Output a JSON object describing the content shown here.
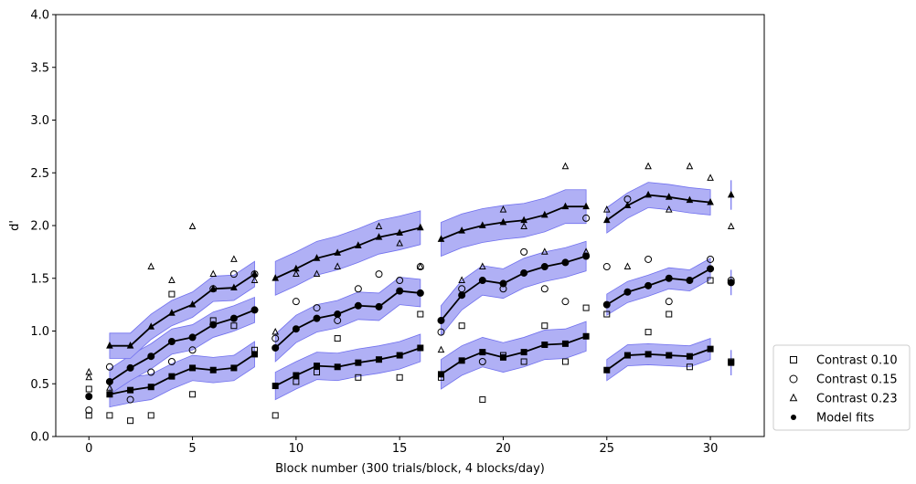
{
  "chart_data": {
    "type": "line",
    "xlabel": "Block number (300 trials/block, 4 blocks/day)",
    "ylabel": "d'",
    "xlim": [
      -1.6,
      32.6
    ],
    "ylim": [
      0.0,
      4.0
    ],
    "x_ticks": [
      0,
      5,
      10,
      15,
      20,
      25,
      30
    ],
    "y_ticks": [
      0.0,
      0.5,
      1.0,
      1.5,
      2.0,
      2.5,
      3.0,
      3.5,
      4.0
    ],
    "legend_position": "right-bottom",
    "band_color": "#b0b0f5",
    "band_edge_color": "#7070ee",
    "legend": [
      {
        "label": "Contrast 0.10",
        "marker": "square"
      },
      {
        "label": "Contrast 0.15",
        "marker": "circle"
      },
      {
        "label": "Contrast 0.23",
        "marker": "triangle"
      },
      {
        "label": "Model fits",
        "marker": "dot"
      }
    ],
    "observed": [
      {
        "name": "Contrast 0.10",
        "marker": "square",
        "points": [
          [
            0,
            0.45
          ],
          [
            0,
            0.2
          ],
          [
            1,
            0.2
          ],
          [
            2,
            0.15
          ],
          [
            3,
            0.2
          ],
          [
            4,
            1.35
          ],
          [
            5,
            0.4
          ],
          [
            6,
            1.1
          ],
          [
            7,
            1.05
          ],
          [
            8,
            0.82
          ],
          [
            9,
            0.2
          ],
          [
            10,
            0.52
          ],
          [
            11,
            0.61
          ],
          [
            12,
            0.93
          ],
          [
            13,
            0.56
          ],
          [
            15,
            0.56
          ],
          [
            16,
            1.16
          ],
          [
            17,
            0.56
          ],
          [
            18,
            1.05
          ],
          [
            19,
            0.35
          ],
          [
            20,
            0.77
          ],
          [
            21,
            0.71
          ],
          [
            22,
            1.05
          ],
          [
            23,
            0.71
          ],
          [
            24,
            1.22
          ],
          [
            25,
            1.16
          ],
          [
            27,
            0.99
          ],
          [
            28,
            1.16
          ],
          [
            29,
            0.66
          ],
          [
            30,
            1.48
          ],
          [
            31,
            0.71
          ]
        ]
      },
      {
        "name": "Contrast 0.15",
        "marker": "circle",
        "points": [
          [
            0,
            0.25
          ],
          [
            1,
            0.66
          ],
          [
            2,
            0.35
          ],
          [
            3,
            0.61
          ],
          [
            4,
            0.71
          ],
          [
            5,
            0.82
          ],
          [
            6,
            1.4
          ],
          [
            7,
            1.54
          ],
          [
            8,
            1.54
          ],
          [
            9,
            0.93
          ],
          [
            10,
            1.28
          ],
          [
            11,
            1.22
          ],
          [
            12,
            1.1
          ],
          [
            13,
            1.4
          ],
          [
            14,
            1.54
          ],
          [
            15,
            1.48
          ],
          [
            16,
            1.61
          ],
          [
            17,
            0.99
          ],
          [
            18,
            1.4
          ],
          [
            19,
            0.71
          ],
          [
            20,
            1.4
          ],
          [
            21,
            1.75
          ],
          [
            22,
            1.4
          ],
          [
            23,
            1.28
          ],
          [
            24,
            2.07
          ],
          [
            25,
            1.61
          ],
          [
            26,
            2.25
          ],
          [
            27,
            1.68
          ],
          [
            28,
            1.28
          ],
          [
            30,
            1.68
          ],
          [
            31,
            1.48
          ]
        ]
      },
      {
        "name": "Contrast 0.23",
        "marker": "triangle",
        "points": [
          [
            0,
            0.61
          ],
          [
            0,
            0.56
          ],
          [
            1,
            0.46
          ],
          [
            3,
            1.61
          ],
          [
            4,
            1.48
          ],
          [
            5,
            1.99
          ],
          [
            6,
            1.54
          ],
          [
            7,
            1.68
          ],
          [
            8,
            1.48
          ],
          [
            9,
            0.99
          ],
          [
            10,
            1.54
          ],
          [
            11,
            1.54
          ],
          [
            12,
            1.61
          ],
          [
            14,
            1.99
          ],
          [
            15,
            1.83
          ],
          [
            16,
            1.61
          ],
          [
            17,
            0.82
          ],
          [
            18,
            1.48
          ],
          [
            19,
            1.61
          ],
          [
            20,
            2.15
          ],
          [
            21,
            1.99
          ],
          [
            22,
            1.75
          ],
          [
            23,
            2.56
          ],
          [
            24,
            1.75
          ],
          [
            25,
            2.15
          ],
          [
            26,
            1.61
          ],
          [
            27,
            2.56
          ],
          [
            28,
            2.15
          ],
          [
            29,
            2.56
          ],
          [
            30,
            2.45
          ],
          [
            31,
            1.99
          ]
        ]
      }
    ],
    "model_fits": [
      {
        "marker": "square",
        "segments": [
          {
            "x": [
              1,
              2,
              3,
              4,
              5,
              6,
              7,
              8
            ],
            "y": [
              0.4,
              0.44,
              0.47,
              0.57,
              0.65,
              0.63,
              0.65,
              0.78
            ],
            "band": 0.12
          },
          {
            "x": [
              9,
              10,
              11,
              12,
              13,
              14,
              15,
              16
            ],
            "y": [
              0.48,
              0.58,
              0.67,
              0.66,
              0.7,
              0.73,
              0.77,
              0.84
            ],
            "band": 0.13
          },
          {
            "x": [
              17,
              18,
              19,
              20,
              21,
              22,
              23,
              24
            ],
            "y": [
              0.59,
              0.72,
              0.8,
              0.75,
              0.8,
              0.87,
              0.88,
              0.95
            ],
            "band": 0.14
          },
          {
            "x": [
              25,
              26,
              27,
              28,
              29,
              30
            ],
            "y": [
              0.63,
              0.77,
              0.78,
              0.77,
              0.76,
              0.83
            ],
            "band": 0.1
          }
        ],
        "isolated": {
          "x": 31,
          "y": 0.7,
          "err": 0.12
        }
      },
      {
        "marker": "circle",
        "segments": [
          {
            "x": [
              0
            ],
            "y": [
              0.38
            ],
            "band": 0
          },
          {
            "x": [
              1,
              2,
              3,
              4,
              5,
              6,
              7,
              8
            ],
            "y": [
              0.52,
              0.65,
              0.76,
              0.9,
              0.94,
              1.06,
              1.12,
              1.2
            ],
            "band": 0.12
          },
          {
            "x": [
              9,
              10,
              11,
              12,
              13,
              14,
              15,
              16
            ],
            "y": [
              0.84,
              1.02,
              1.12,
              1.16,
              1.24,
              1.23,
              1.38,
              1.36
            ],
            "band": 0.13
          },
          {
            "x": [
              17,
              18,
              19,
              20,
              21,
              22,
              23,
              24
            ],
            "y": [
              1.1,
              1.34,
              1.48,
              1.45,
              1.55,
              1.61,
              1.65,
              1.71
            ],
            "band": 0.14
          },
          {
            "x": [
              25,
              26,
              27,
              28,
              29,
              30
            ],
            "y": [
              1.25,
              1.37,
              1.43,
              1.5,
              1.48,
              1.59
            ],
            "band": 0.1
          }
        ],
        "isolated": {
          "x": 31,
          "y": 1.46,
          "err": 0.12
        }
      },
      {
        "marker": "triangle",
        "segments": [
          {
            "x": [
              1,
              2,
              3,
              4,
              5,
              6,
              7,
              8
            ],
            "y": [
              0.86,
              0.86,
              1.04,
              1.17,
              1.25,
              1.4,
              1.41,
              1.54
            ],
            "band": 0.12
          },
          {
            "x": [
              9,
              10,
              11,
              12,
              13,
              14,
              15,
              16
            ],
            "y": [
              1.5,
              1.59,
              1.69,
              1.74,
              1.81,
              1.89,
              1.93,
              1.98
            ],
            "band": 0.16
          },
          {
            "x": [
              17,
              18,
              19,
              20,
              21,
              22,
              23,
              24
            ],
            "y": [
              1.87,
              1.95,
              2.0,
              2.03,
              2.05,
              2.1,
              2.18,
              2.18
            ],
            "band": 0.16
          },
          {
            "x": [
              25,
              26,
              27,
              28,
              29,
              30
            ],
            "y": [
              2.05,
              2.19,
              2.29,
              2.27,
              2.24,
              2.22
            ],
            "band": 0.12
          }
        ],
        "isolated": {
          "x": 31,
          "y": 2.29,
          "err": 0.14
        }
      }
    ]
  }
}
